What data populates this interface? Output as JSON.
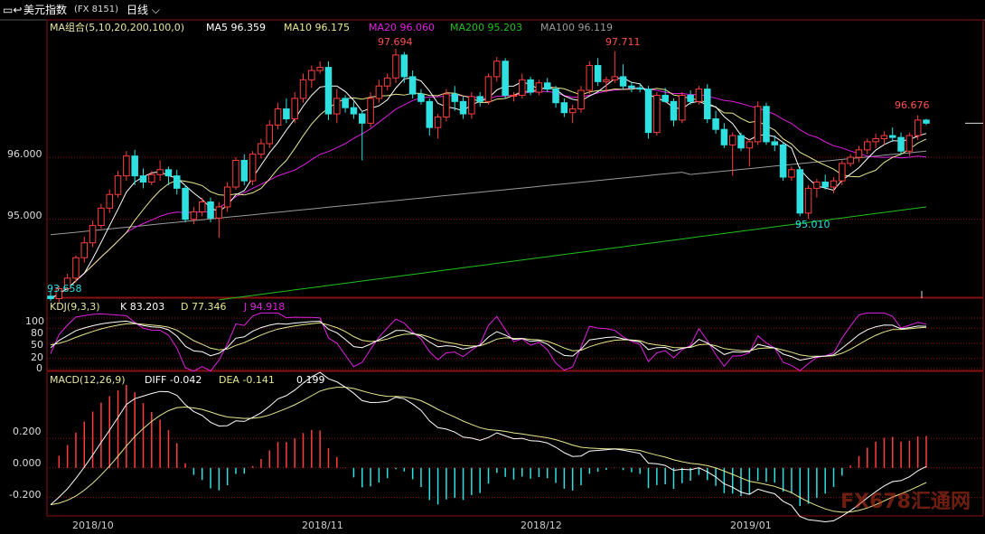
{
  "header": {
    "instrument": "美元指数",
    "code": "(FX 8151)",
    "period": "日线"
  },
  "legend_main": {
    "group": "MA组合(5,10,20,200,100,0)",
    "ma5": "MA5 96.359",
    "ma10": "MA10 96.175",
    "ma20": "MA20 96.060",
    "ma200": "MA200 95.203",
    "ma100": "MA100 96.119"
  },
  "legend_kdj": {
    "name": "KDJ(9,3,3)",
    "k": "K 83.203",
    "d": "D 77.346",
    "j": "J 94.918"
  },
  "legend_macd": {
    "name": "MACD(12,26,9)",
    "diff": "DIFF -0.042",
    "dea": "DEA -0.141",
    "macd": "0.199"
  },
  "annotations": {
    "high1": "97.694",
    "high2": "97.711",
    "low1": "95.010",
    "last": "96.676",
    "start_low": "93.658"
  },
  "y_labels_main": [
    "96.000",
    "95.000"
  ],
  "y_labels_kdj": [
    "100",
    "80",
    "50",
    "20",
    "0"
  ],
  "y_labels_macd": [
    "0.200",
    "0.000",
    "-0.200"
  ],
  "x_labels": [
    "2018/10",
    "2018/11",
    "2018/12",
    "2019/01"
  ],
  "watermark": "FX678汇通网",
  "colors": {
    "up": "#ff3d3d",
    "down": "#2fe0e0",
    "ma5": "#ffffff",
    "ma10": "#e8e890",
    "ma20": "#e020e0",
    "ma200": "#20c020",
    "ma100": "#9a9a9a",
    "grid": "#8b1010"
  },
  "chart_data": {
    "type": "candlestick",
    "title": "美元指数 (FX 8151) 日线",
    "ylim": [
      93.8,
      98.1
    ],
    "candles_ohlc": [
      [
        93.76,
        93.85,
        93.68,
        93.72
      ],
      [
        93.72,
        93.92,
        93.66,
        93.88
      ],
      [
        93.88,
        94.12,
        93.85,
        94.05
      ],
      [
        94.05,
        94.42,
        93.98,
        94.38
      ],
      [
        94.38,
        94.72,
        94.3,
        94.62
      ],
      [
        94.62,
        94.98,
        94.55,
        94.9
      ],
      [
        94.9,
        95.25,
        94.85,
        95.18
      ],
      [
        95.18,
        95.48,
        95.1,
        95.4
      ],
      [
        95.4,
        95.78,
        95.35,
        95.7
      ],
      [
        95.7,
        96.1,
        95.62,
        96.02
      ],
      [
        96.02,
        96.12,
        95.55,
        95.7
      ],
      [
        95.7,
        95.82,
        95.5,
        95.6
      ],
      [
        95.6,
        95.78,
        95.55,
        95.72
      ],
      [
        95.72,
        95.95,
        95.62,
        95.8
      ],
      [
        95.8,
        95.85,
        95.55,
        95.7
      ],
      [
        95.7,
        95.8,
        95.4,
        95.5
      ],
      [
        95.5,
        95.55,
        94.95,
        95.0
      ],
      [
        95.0,
        95.2,
        94.92,
        95.12
      ],
      [
        95.12,
        95.35,
        95.05,
        95.28
      ],
      [
        95.28,
        95.35,
        94.95,
        95.02
      ],
      [
        95.02,
        95.28,
        94.7,
        95.2
      ],
      [
        95.2,
        95.6,
        95.12,
        95.52
      ],
      [
        95.52,
        96.0,
        95.48,
        95.95
      ],
      [
        95.95,
        96.05,
        95.55,
        95.62
      ],
      [
        95.62,
        96.1,
        95.55,
        96.05
      ],
      [
        96.05,
        96.3,
        95.98,
        96.22
      ],
      [
        96.22,
        96.6,
        96.15,
        96.52
      ],
      [
        96.52,
        96.88,
        96.45,
        96.78
      ],
      [
        96.78,
        96.95,
        96.55,
        96.62
      ],
      [
        96.62,
        97.05,
        96.55,
        96.95
      ],
      [
        96.95,
        97.35,
        96.88,
        97.25
      ],
      [
        97.25,
        97.48,
        97.12,
        97.4
      ],
      [
        97.4,
        97.55,
        97.35,
        97.45
      ],
      [
        97.45,
        97.55,
        96.6,
        96.7
      ],
      [
        96.7,
        97.1,
        96.55,
        96.95
      ],
      [
        96.95,
        97.0,
        96.72,
        96.8
      ],
      [
        96.8,
        96.9,
        96.62,
        96.7
      ],
      [
        96.7,
        96.75,
        95.95,
        96.55
      ],
      [
        96.55,
        97.05,
        96.48,
        96.95
      ],
      [
        96.95,
        97.25,
        96.88,
        97.15
      ],
      [
        97.15,
        97.35,
        97.08,
        97.28
      ],
      [
        97.28,
        97.75,
        97.2,
        97.65
      ],
      [
        97.65,
        97.7,
        97.2,
        97.3
      ],
      [
        97.3,
        97.4,
        96.95,
        97.02
      ],
      [
        97.02,
        97.1,
        96.85,
        96.9
      ],
      [
        96.9,
        96.95,
        96.35,
        96.48
      ],
      [
        96.48,
        96.7,
        96.3,
        96.65
      ],
      [
        96.65,
        97.1,
        96.58,
        97.02
      ],
      [
        97.02,
        97.15,
        96.75,
        96.9
      ],
      [
        96.9,
        96.98,
        96.62,
        96.7
      ],
      [
        96.7,
        97.05,
        96.62,
        96.98
      ],
      [
        96.98,
        97.05,
        96.82,
        96.9
      ],
      [
        96.9,
        97.35,
        96.85,
        97.3
      ],
      [
        97.3,
        97.62,
        97.22,
        97.55
      ],
      [
        97.55,
        97.6,
        96.95,
        97.0
      ],
      [
        97.0,
        97.05,
        96.9,
        97.0
      ],
      [
        97.0,
        97.35,
        96.95,
        97.25
      ],
      [
        97.25,
        97.3,
        97.0,
        97.05
      ],
      [
        97.05,
        97.25,
        97.0,
        97.2
      ],
      [
        97.2,
        97.28,
        97.05,
        97.1
      ],
      [
        97.1,
        97.15,
        96.8,
        96.88
      ],
      [
        96.88,
        96.95,
        96.65,
        96.72
      ],
      [
        96.72,
        96.85,
        96.55,
        96.78
      ],
      [
        96.78,
        97.15,
        96.72,
        97.08
      ],
      [
        97.08,
        97.55,
        97.02,
        97.48
      ],
      [
        97.48,
        97.6,
        97.15,
        97.22
      ],
      [
        97.22,
        97.3,
        97.05,
        97.25
      ],
      [
        97.25,
        97.71,
        97.2,
        97.3
      ],
      [
        97.3,
        97.5,
        97.1,
        97.15
      ],
      [
        97.15,
        97.22,
        97.05,
        97.12
      ],
      [
        97.12,
        97.18,
        97.05,
        97.1
      ],
      [
        97.1,
        97.15,
        96.3,
        96.4
      ],
      [
        96.4,
        97.05,
        96.35,
        97.0
      ],
      [
        97.0,
        97.12,
        96.88,
        96.9
      ],
      [
        96.9,
        96.95,
        96.5,
        96.6
      ],
      [
        96.6,
        97.05,
        96.55,
        97.0
      ],
      [
        97.0,
        97.08,
        96.85,
        96.9
      ],
      [
        96.9,
        97.15,
        96.85,
        97.1
      ],
      [
        97.1,
        97.18,
        96.55,
        96.62
      ],
      [
        96.62,
        96.75,
        96.38,
        96.45
      ],
      [
        96.45,
        96.55,
        96.15,
        96.2
      ],
      [
        96.2,
        96.4,
        95.7,
        96.35
      ],
      [
        96.35,
        96.4,
        96.1,
        96.15
      ],
      [
        96.15,
        96.3,
        95.85,
        96.25
      ],
      [
        96.25,
        96.9,
        96.2,
        96.82
      ],
      [
        96.82,
        96.88,
        96.2,
        96.25
      ],
      [
        96.25,
        96.35,
        96.1,
        96.2
      ],
      [
        96.2,
        96.25,
        95.62,
        95.68
      ],
      [
        95.68,
        95.85,
        95.62,
        95.8
      ],
      [
        95.8,
        95.85,
        95.05,
        95.1
      ],
      [
        95.1,
        95.55,
        95.01,
        95.5
      ],
      [
        95.5,
        95.65,
        95.35,
        95.6
      ],
      [
        95.6,
        95.72,
        95.48,
        95.52
      ],
      [
        95.52,
        95.68,
        95.42,
        95.62
      ],
      [
        95.62,
        95.95,
        95.55,
        95.9
      ],
      [
        95.9,
        96.05,
        95.85,
        96.0
      ],
      [
        96.0,
        96.18,
        95.92,
        96.12
      ],
      [
        96.12,
        96.3,
        96.05,
        96.25
      ],
      [
        96.25,
        96.38,
        96.15,
        96.3
      ],
      [
        96.3,
        96.42,
        96.2,
        96.35
      ],
      [
        96.35,
        96.48,
        96.25,
        96.32
      ],
      [
        96.32,
        96.4,
        96.05,
        96.1
      ],
      [
        96.1,
        96.4,
        96.02,
        96.35
      ],
      [
        96.35,
        96.68,
        96.28,
        96.6
      ],
      [
        96.6,
        96.62,
        96.52,
        96.55
      ]
    ],
    "ma_series": [
      {
        "name": "MA5",
        "last": 96.359
      },
      {
        "name": "MA10",
        "last": 96.175
      },
      {
        "name": "MA20",
        "last": 96.06
      },
      {
        "name": "MA200",
        "last": 95.203
      },
      {
        "name": "MA100",
        "last": 96.119
      }
    ],
    "kdj": {
      "ylim": [
        0,
        110
      ],
      "K_last": 83.203,
      "D_last": 77.346,
      "J_last": 94.918
    },
    "macd": {
      "ylim": [
        -0.32,
        0.55
      ],
      "DIFF_last": -0.042,
      "DEA_last": -0.141,
      "MACD_last": 0.199
    }
  }
}
